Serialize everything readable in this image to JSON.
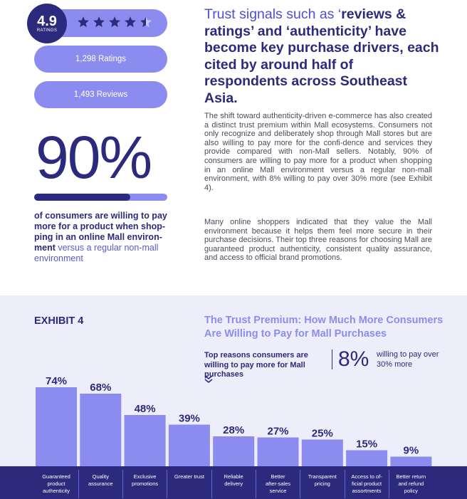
{
  "rating": {
    "score": "4.9",
    "score_label": "RATINGS",
    "stars": 4.5,
    "ratings_count": "1,298 Ratings",
    "reviews_count": "1,493 Reviews"
  },
  "stat": {
    "value": "90%",
    "fill_fraction": 0.9,
    "text_bold": "of consumers are willing to pay more for a product when shop-ping in an online Mall environ-ment",
    "text_rest": " versus a regular non-mall environment"
  },
  "headline": {
    "part1": "Trust signals such as ‘",
    "part2": "reviews & ratings’ and ‘authenticity’ have become key purchase drivers, each cited by around half of respondents across Southeast Asia."
  },
  "paragraphs": [
    "The shift toward authenticity-driven e-commerce has also created a distinct trust premium within Mall ecosystems. Consumers not only recognize and deliberately shop through Mall stores but are also willing to pay more for the confi-dence and services they provide compared with non-Mall sellers. Notably, 90% of consumers are willing to pay more for a product when shopping in an online Mall environment versus a regular non-mall environment, with 8% willing to pay over 30% more (see Exhibit 4).",
    "Many online shoppers indicated that they value the Mall environment because it helps them feel more secure in their purchase decisions. Their top three reasons for choosing Mall are guaranteed product authenticity, consistent quality assurance, and access to official brand promotions."
  ],
  "exhibit": {
    "label": "EXHIBIT 4",
    "title": "The Trust Premium: How Much More Consumers Are Willing to Pay for Mall Purchases",
    "subtitle": "Top reasons consumers are willing to pay more for Mall purchases",
    "pct": "8%",
    "pct_label": "willing to pay over 30% more"
  },
  "colors": {
    "dark": "#2b2a7c",
    "accent": "#8c8cf0",
    "bar": "#8c8cf0",
    "background": "#eeeefb"
  },
  "chart_data": {
    "type": "bar",
    "categories": [
      "Guaranteed product authenticity",
      "Quality assurance",
      "Exclusive promotions",
      "Greater trust",
      "Reliable delivery",
      "Better after-sales service",
      "Transparent pricing",
      "Access to of-ficial product assortments",
      "Better return and refund policy"
    ],
    "category_lines": [
      [
        "Guaranteed",
        "product",
        "authenticity"
      ],
      [
        "Quality",
        "assurance"
      ],
      [
        "Exclusive",
        "promotions"
      ],
      [
        "Greater trust"
      ],
      [
        "Reliable",
        "delivery"
      ],
      [
        "Better",
        "after-sales",
        "service"
      ],
      [
        "Transparent",
        "pricing"
      ],
      [
        "Access to of-",
        "ficial product",
        "assortments"
      ],
      [
        "Better return",
        "and refund",
        "policy"
      ]
    ],
    "values": [
      74,
      68,
      48,
      39,
      28,
      27,
      25,
      15,
      9
    ],
    "value_labels": [
      "74%",
      "68%",
      "48%",
      "39%",
      "28%",
      "27%",
      "25%",
      "15%",
      "9%"
    ],
    "unit": "%",
    "ylim": [
      0,
      100
    ],
    "grid": false,
    "legend": "none"
  }
}
